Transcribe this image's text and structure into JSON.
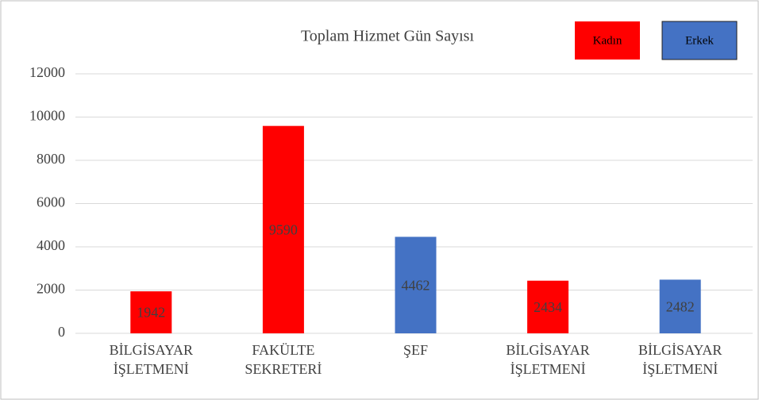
{
  "chart_data": {
    "type": "bar",
    "title": "Toplam Hizmet Gün Sayısı",
    "categories": [
      [
        "BİLGİSAYAR",
        "İŞLETMENİ"
      ],
      [
        "FAKÜLTE",
        "SEKRETERİ"
      ],
      [
        "ŞEF"
      ],
      [
        "BİLGİSAYAR",
        "İŞLETMENİ"
      ],
      [
        "BİLGİSAYAR",
        "İŞLETMENİ"
      ]
    ],
    "values": [
      1942,
      9590,
      4462,
      2434,
      2482
    ],
    "colors": [
      "#ff0000",
      "#ff0000",
      "#4472c4",
      "#ff0000",
      "#4472c4"
    ],
    "legend": [
      {
        "name": "Kadın",
        "color": "#ff0000"
      },
      {
        "name": "Erkek",
        "color": "#4472c4"
      }
    ],
    "ylim": [
      0,
      12000
    ],
    "yticks": [
      0,
      2000,
      4000,
      6000,
      8000,
      10000,
      12000
    ],
    "grid": true
  }
}
